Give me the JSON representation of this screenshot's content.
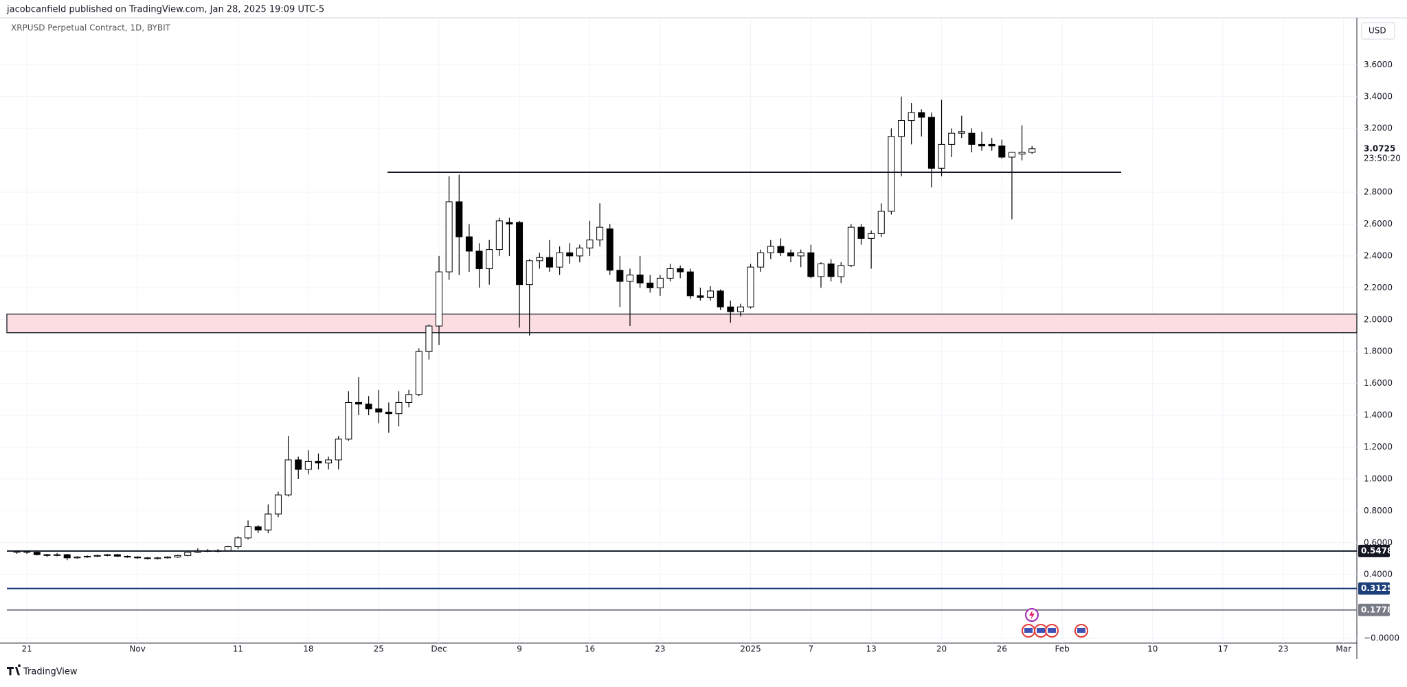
{
  "header": {
    "text": "jacobcanfield published on TradingView.com, Jan 28, 2025 19:09 UTC-5"
  },
  "footer": {
    "brand": "TradingView"
  },
  "chart_data": {
    "type": "candlestick",
    "title": "XRPUSD Perpetual Contract, 1D, BYBIT",
    "currency": "USD",
    "countdown": "23:50:20",
    "categories": [
      null,
      "21",
      null,
      null,
      null,
      null,
      null,
      null,
      null,
      null,
      null,
      null,
      "Nov",
      null,
      null,
      null,
      null,
      null,
      null,
      null,
      null,
      null,
      "11",
      null,
      null,
      null,
      null,
      null,
      null,
      "18",
      null,
      null,
      null,
      null,
      null,
      null,
      "25",
      null,
      null,
      null,
      null,
      null,
      "Dec",
      null,
      null,
      null,
      null,
      null,
      null,
      null,
      "9",
      null,
      null,
      null,
      null,
      null,
      null,
      "16",
      null,
      null,
      null,
      null,
      null,
      null,
      "23",
      null,
      null,
      null,
      null,
      null,
      null,
      null,
      null,
      "2025",
      null,
      null,
      null,
      null,
      null,
      "7",
      null,
      null,
      null,
      null,
      null,
      "13",
      null,
      null,
      null,
      null,
      null,
      null,
      "20",
      null,
      null,
      null,
      null,
      null,
      "26",
      null,
      null,
      null,
      null,
      null,
      "Feb",
      null,
      null,
      null,
      null,
      null,
      null,
      null,
      null,
      "10",
      null,
      null,
      null,
      null,
      null,
      null,
      "17",
      null,
      null,
      null,
      null,
      null,
      "23",
      null,
      null,
      null,
      null,
      null,
      "Mar"
    ],
    "open": [
      0.54,
      0.545,
      0.54,
      0.525,
      0.52,
      0.525,
      0.505,
      0.51,
      0.515,
      0.52,
      0.525,
      0.515,
      0.51,
      0.505,
      0.5,
      0.505,
      0.51,
      0.52,
      0.54,
      0.55,
      0.545,
      0.55,
      0.575,
      0.63,
      0.7,
      0.68,
      0.78,
      0.9,
      1.12,
      1.06,
      1.11,
      1.1,
      1.12,
      1.25,
      1.48,
      1.47,
      1.44,
      1.42,
      1.41,
      1.48,
      1.53,
      1.8,
      1.96,
      2.3,
      2.74,
      2.52,
      2.43,
      2.32,
      2.44,
      2.61,
      2.61,
      2.22,
      2.37,
      2.39,
      2.33,
      2.42,
      2.4,
      2.45,
      2.5,
      2.57,
      2.31,
      2.24,
      2.28,
      2.23,
      2.2,
      2.26,
      2.32,
      2.3,
      2.15,
      2.14,
      2.18,
      2.08,
      2.05,
      2.08,
      2.33,
      2.42,
      2.46,
      2.42,
      2.4,
      2.42,
      2.27,
      2.35,
      2.27,
      2.34,
      2.58,
      2.51,
      2.54,
      2.68,
      3.15,
      3.25,
      3.3,
      3.27,
      2.95,
      3.1,
      3.17,
      3.17,
      3.1,
      3.1,
      3.09,
      3.02,
      3.04,
      3.05,
      null,
      null,
      null,
      null,
      null,
      null,
      null,
      null,
      null,
      null,
      null,
      null,
      null,
      null,
      null,
      null,
      null,
      null,
      null,
      null,
      null,
      null,
      null,
      null,
      null,
      null,
      null,
      null,
      null,
      null,
      null
    ],
    "high": [
      0.55,
      0.55,
      0.545,
      0.53,
      0.535,
      0.53,
      0.515,
      0.52,
      0.525,
      0.53,
      0.53,
      0.52,
      0.515,
      0.51,
      0.51,
      0.515,
      0.525,
      0.545,
      0.565,
      0.56,
      0.56,
      0.58,
      0.64,
      0.74,
      0.71,
      0.84,
      0.92,
      1.27,
      1.14,
      1.18,
      1.16,
      1.14,
      1.27,
      1.55,
      1.64,
      1.52,
      1.56,
      1.48,
      1.55,
      1.56,
      1.82,
      1.97,
      2.4,
      2.9,
      2.91,
      2.6,
      2.48,
      2.5,
      2.64,
      2.64,
      2.62,
      2.38,
      2.42,
      2.5,
      2.46,
      2.48,
      2.47,
      2.62,
      2.73,
      2.6,
      2.4,
      2.32,
      2.4,
      2.28,
      2.28,
      2.35,
      2.34,
      2.32,
      2.2,
      2.21,
      2.19,
      2.12,
      2.1,
      2.35,
      2.44,
      2.5,
      2.51,
      2.44,
      2.44,
      2.47,
      2.36,
      2.38,
      2.36,
      2.6,
      2.6,
      2.56,
      2.73,
      3.2,
      3.4,
      3.36,
      3.32,
      3.3,
      3.38,
      3.2,
      3.28,
      3.2,
      3.18,
      3.14,
      3.13,
      3.05,
      3.22,
      3.09,
      null,
      null,
      null,
      null,
      null,
      null,
      null,
      null,
      null,
      null,
      null,
      null,
      null,
      null,
      null,
      null,
      null,
      null,
      null,
      null,
      null,
      null,
      null,
      null,
      null,
      null,
      null,
      null,
      null,
      null,
      null
    ],
    "low": [
      0.53,
      0.53,
      0.52,
      0.51,
      0.515,
      0.49,
      0.5,
      0.505,
      0.51,
      0.515,
      0.51,
      0.505,
      0.5,
      0.495,
      0.495,
      0.5,
      0.505,
      0.515,
      0.535,
      0.54,
      0.54,
      0.545,
      0.56,
      0.62,
      0.66,
      0.66,
      0.76,
      0.89,
      1.0,
      1.03,
      1.06,
      1.06,
      1.06,
      1.24,
      1.4,
      1.4,
      1.35,
      1.29,
      1.33,
      1.45,
      1.52,
      1.75,
      1.84,
      2.25,
      2.28,
      2.3,
      2.2,
      2.22,
      2.4,
      2.4,
      1.95,
      1.9,
      2.32,
      2.3,
      2.28,
      2.35,
      2.36,
      2.4,
      2.46,
      2.28,
      2.08,
      1.96,
      2.2,
      2.17,
      2.15,
      2.24,
      2.26,
      2.13,
      2.12,
      2.12,
      2.06,
      1.98,
      2.02,
      2.07,
      2.3,
      2.38,
      2.4,
      2.36,
      2.33,
      2.26,
      2.2,
      2.24,
      2.23,
      2.33,
      2.47,
      2.32,
      2.52,
      2.66,
      2.9,
      3.1,
      3.15,
      2.83,
      2.9,
      3.02,
      3.14,
      3.05,
      3.06,
      3.06,
      3.01,
      2.63,
      3.0,
      3.04,
      null,
      null,
      null,
      null,
      null,
      null,
      null,
      null,
      null,
      null,
      null,
      null,
      null,
      null,
      null,
      null,
      null,
      null,
      null,
      null,
      null,
      null,
      null,
      null,
      null,
      null,
      null,
      null,
      null,
      null,
      null
    ],
    "close": [
      0.545,
      0.54,
      0.525,
      0.52,
      0.525,
      0.505,
      0.51,
      0.515,
      0.52,
      0.525,
      0.515,
      0.51,
      0.505,
      0.5,
      0.505,
      0.51,
      0.52,
      0.54,
      0.55,
      0.545,
      0.55,
      0.575,
      0.63,
      0.7,
      0.68,
      0.78,
      0.9,
      1.12,
      1.06,
      1.11,
      1.1,
      1.12,
      1.25,
      1.48,
      1.47,
      1.44,
      1.42,
      1.41,
      1.48,
      1.53,
      1.8,
      1.96,
      2.3,
      2.74,
      2.52,
      2.43,
      2.32,
      2.44,
      2.62,
      2.6,
      2.22,
      2.37,
      2.39,
      2.33,
      2.42,
      2.4,
      2.45,
      2.5,
      2.58,
      2.31,
      2.24,
      2.28,
      2.23,
      2.2,
      2.26,
      2.32,
      2.3,
      2.15,
      2.14,
      2.18,
      2.08,
      2.05,
      2.08,
      2.33,
      2.42,
      2.46,
      2.42,
      2.4,
      2.42,
      2.27,
      2.35,
      2.27,
      2.34,
      2.58,
      2.51,
      2.54,
      2.68,
      3.15,
      3.25,
      3.3,
      3.27,
      2.95,
      3.1,
      3.17,
      3.18,
      3.1,
      3.09,
      3.09,
      3.02,
      3.05,
      3.05,
      3.0725,
      null,
      null,
      null,
      null,
      null,
      null,
      null,
      null,
      null,
      null,
      null,
      null,
      null,
      null,
      null,
      null,
      null,
      null,
      null,
      null,
      null,
      null,
      null,
      null,
      null,
      null,
      null,
      null,
      null,
      null,
      null
    ],
    "up_color": "#ffffff",
    "down_color": "#000000",
    "ylim": [
      -0.03,
      3.89
    ],
    "yticks": [
      {
        "value": 0,
        "label": "−0.0000"
      },
      {
        "value": 0.4,
        "label": "0.4000"
      },
      {
        "value": 0.6,
        "label": "0.6000"
      },
      {
        "value": 0.8,
        "label": "0.8000"
      },
      {
        "value": 1.0,
        "label": "1.0000"
      },
      {
        "value": 1.2,
        "label": "1.2000"
      },
      {
        "value": 1.4,
        "label": "1.4000"
      },
      {
        "value": 1.6,
        "label": "1.6000"
      },
      {
        "value": 1.8,
        "label": "1.8000"
      },
      {
        "value": 2.0,
        "label": "2.0000"
      },
      {
        "value": 2.2,
        "label": "2.2000"
      },
      {
        "value": 2.4,
        "label": "2.4000"
      },
      {
        "value": 2.6,
        "label": "2.6000"
      },
      {
        "value": 2.8,
        "label": "2.8000"
      },
      {
        "value": 3.2,
        "label": "3.2000"
      },
      {
        "value": 3.4,
        "label": "3.4000"
      },
      {
        "value": 3.6,
        "label": "3.6000"
      }
    ],
    "grid": true,
    "zone": {
      "range": [
        1.918,
        2.035
      ],
      "color": "#fbdde2"
    },
    "resistance": {
      "value": 2.925,
      "color": "#131722"
    },
    "hlines": [
      {
        "value": 0.5478,
        "color": "#131722"
      },
      {
        "value": 0.3125,
        "color": "#1c3f7a"
      },
      {
        "value": 0.1778,
        "color": "#787b86"
      }
    ]
  }
}
